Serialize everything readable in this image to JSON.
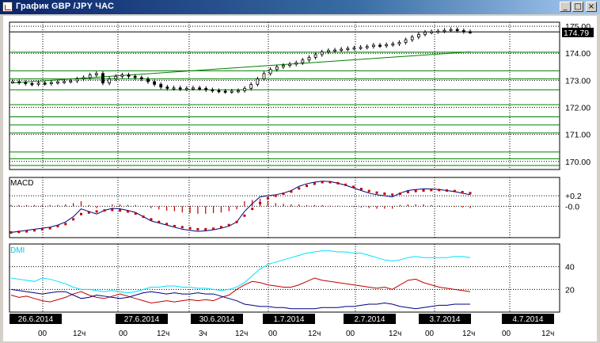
{
  "window": {
    "title": "График GBP /JPY  ЧАС",
    "controls": {
      "minimize": "_",
      "maximize": "□",
      "close": "×"
    }
  },
  "colors": {
    "background": "#ffffff",
    "frame": "#000000",
    "grid": "#000000",
    "sr_lines": "#008000",
    "trend_line": "#008000",
    "macd_line": "#000080",
    "macd_signal": "#c00000",
    "macd_hist": "#c00000",
    "dmi_adx": "#00e0ff",
    "dmi_plus": "#c00000",
    "dmi_minus": "#000080",
    "price_badge_bg": "#000000",
    "price_badge_text": "#ffffff",
    "date_badge_bg": "#000000",
    "date_badge_text": "#ffffff"
  },
  "chart_data": {
    "type": "candlestick",
    "title": "",
    "current_price": "174.79",
    "price_axis": {
      "ticks": [
        "175.00",
        "174.00",
        "173.00",
        "172.00",
        "171.00",
        "170.00"
      ],
      "range": [
        169.7,
        175.15
      ]
    },
    "horizontal_levels": [
      174.04,
      173.35,
      173.05,
      172.65,
      172.1,
      171.65,
      171.35,
      171.05,
      170.35,
      170.1,
      169.85
    ],
    "trend_line": {
      "from": 172.9,
      "to": 174.05
    },
    "price_series": [
      172.95,
      172.92,
      172.88,
      172.86,
      172.9,
      172.88,
      172.92,
      172.94,
      172.96,
      172.98,
      173.05,
      173.1,
      173.2,
      173.25,
      172.9,
      173.05,
      173.15,
      173.2,
      173.15,
      173.1,
      173.05,
      172.95,
      172.85,
      172.75,
      172.7,
      172.72,
      172.68,
      172.7,
      172.72,
      172.7,
      172.65,
      172.62,
      172.6,
      172.58,
      172.6,
      172.62,
      172.7,
      172.85,
      173.05,
      173.25,
      173.4,
      173.5,
      173.55,
      173.6,
      173.65,
      173.75,
      173.85,
      173.95,
      174.05,
      174.1,
      174.12,
      174.15,
      174.18,
      174.2,
      174.22,
      174.25,
      174.3,
      174.28,
      174.32,
      174.35,
      174.4,
      174.5,
      174.6,
      174.7,
      174.78,
      174.8,
      174.82,
      174.85,
      174.88,
      174.84,
      174.8,
      174.79
    ],
    "macd": {
      "label": "MACD",
      "ticks": [
        "+0.2",
        "-0.0"
      ],
      "range": [
        -0.6,
        0.55
      ],
      "macd_line": [
        -0.5,
        -0.48,
        -0.46,
        -0.44,
        -0.42,
        -0.4,
        -0.36,
        -0.3,
        -0.2,
        -0.05,
        -0.1,
        -0.15,
        -0.08,
        -0.04,
        -0.05,
        -0.08,
        -0.12,
        -0.2,
        -0.28,
        -0.32,
        -0.36,
        -0.4,
        -0.44,
        -0.46,
        -0.48,
        -0.47,
        -0.45,
        -0.42,
        -0.38,
        -0.3,
        -0.1,
        0.05,
        0.18,
        0.2,
        0.22,
        0.25,
        0.3,
        0.38,
        0.43,
        0.46,
        0.48,
        0.47,
        0.44,
        0.4,
        0.35,
        0.3,
        0.25,
        0.22,
        0.2,
        0.18,
        0.25,
        0.3,
        0.32,
        0.33,
        0.33,
        0.32,
        0.3,
        0.28,
        0.25,
        0.22
      ],
      "signal_line": [
        -0.5,
        -0.49,
        -0.48,
        -0.46,
        -0.44,
        -0.42,
        -0.38,
        -0.34,
        -0.25,
        -0.15,
        -0.12,
        -0.1,
        -0.08,
        -0.07,
        -0.08,
        -0.1,
        -0.14,
        -0.2,
        -0.25,
        -0.3,
        -0.34,
        -0.38,
        -0.4,
        -0.42,
        -0.44,
        -0.44,
        -0.43,
        -0.4,
        -0.36,
        -0.3,
        -0.18,
        -0.05,
        0.06,
        0.15,
        0.2,
        0.24,
        0.28,
        0.34,
        0.39,
        0.43,
        0.46,
        0.46,
        0.44,
        0.41,
        0.37,
        0.33,
        0.29,
        0.26,
        0.24,
        0.22,
        0.24,
        0.27,
        0.29,
        0.3,
        0.31,
        0.31,
        0.3,
        0.29,
        0.27,
        0.25
      ],
      "histogram": [
        0.02,
        0.02,
        0.02,
        0.02,
        0.02,
        0.02,
        0.02,
        0.03,
        0.05,
        0.08,
        0.02,
        -0.03,
        0.0,
        0.03,
        0.03,
        0.02,
        0.02,
        0.0,
        -0.03,
        -0.05,
        -0.07,
        -0.08,
        -0.1,
        -0.11,
        -0.12,
        -0.12,
        -0.11,
        -0.1,
        -0.08,
        -0.05,
        0.08,
        0.1,
        0.12,
        0.09,
        0.05,
        0.04,
        0.03,
        0.03,
        0.02,
        0.02,
        0.02,
        0.01,
        0.01,
        0.0,
        -0.01,
        -0.02,
        -0.03,
        -0.04,
        -0.04,
        -0.04,
        0.02,
        0.03,
        0.03,
        0.03,
        0.02,
        0.01,
        0.0,
        -0.01,
        -0.02,
        -0.03
      ]
    },
    "dmi": {
      "label": "DMI",
      "ticks": [
        "40",
        "20"
      ],
      "range": [
        0,
        60
      ],
      "adx": [
        30,
        29,
        28,
        27,
        30,
        29,
        27,
        25,
        22,
        20,
        20,
        19,
        18,
        19,
        18,
        17,
        18,
        20,
        22,
        22,
        23,
        23,
        22,
        22,
        21,
        21,
        20,
        19,
        20,
        22,
        26,
        32,
        38,
        42,
        44,
        46,
        48,
        50,
        52,
        53,
        54,
        54,
        53,
        53,
        52,
        52,
        50,
        48,
        46,
        45,
        46,
        48,
        49,
        48,
        48,
        48,
        48,
        49,
        49,
        48
      ],
      "di_plus": [
        15,
        13,
        14,
        12,
        10,
        9,
        11,
        13,
        16,
        18,
        15,
        13,
        12,
        14,
        16,
        14,
        12,
        10,
        8,
        9,
        10,
        9,
        10,
        11,
        10,
        11,
        10,
        13,
        15,
        20,
        24,
        27,
        26,
        24,
        23,
        22,
        22,
        24,
        27,
        30,
        28,
        27,
        26,
        25,
        24,
        23,
        22,
        21,
        22,
        20,
        24,
        28,
        29,
        26,
        24,
        22,
        21,
        20,
        19,
        18
      ],
      "di_minus": [
        20,
        19,
        18,
        17,
        16,
        17,
        18,
        18,
        15,
        12,
        13,
        15,
        14,
        13,
        12,
        13,
        15,
        17,
        18,
        17,
        16,
        17,
        16,
        16,
        17,
        16,
        16,
        14,
        12,
        10,
        7,
        6,
        5,
        5,
        4,
        4,
        3,
        3,
        3,
        3,
        4,
        4,
        4,
        5,
        5,
        6,
        7,
        7,
        8,
        7,
        5,
        4,
        3,
        4,
        5,
        6,
        6,
        7,
        7,
        7
      ]
    },
    "x_axis": {
      "dates": [
        "26.6.2014",
        "27.6.2014",
        "30.6.2014",
        "1.7.2014",
        "2.7.2014",
        "3.7.2014",
        "4.7.2014"
      ],
      "hour_labels": [
        "00",
        "12ч",
        "00",
        "12ч",
        "3ч",
        "12ч",
        "00",
        "12ч",
        "00",
        "12ч",
        "00",
        "12ч",
        "00",
        "12ч"
      ]
    }
  }
}
